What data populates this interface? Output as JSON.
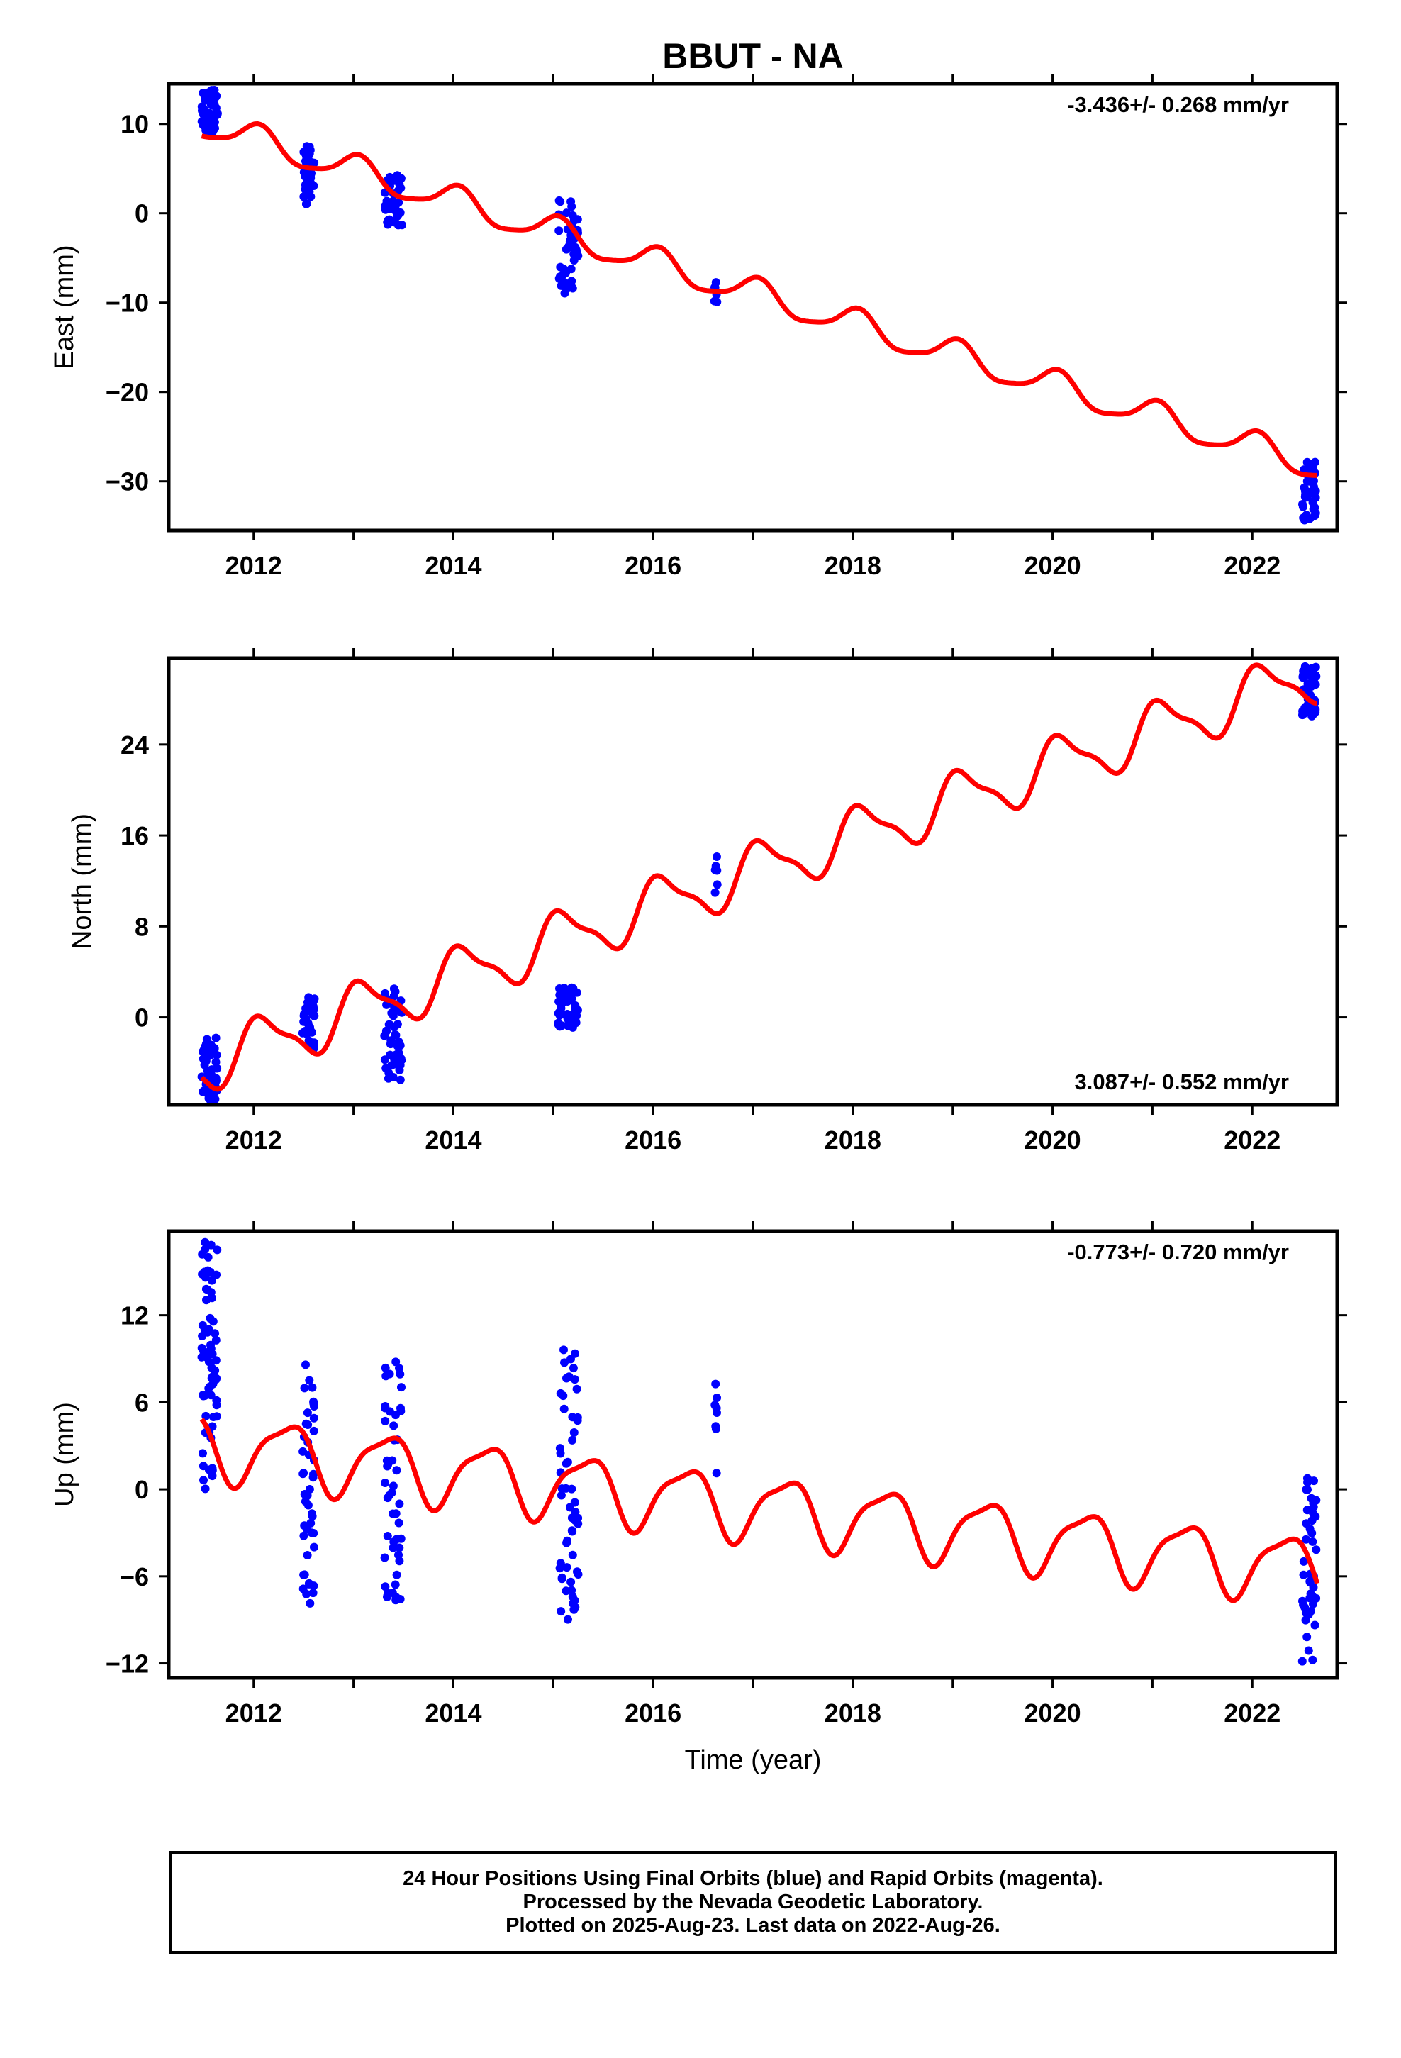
{
  "title": "BBUT - NA",
  "colors": {
    "data": "#0000ff",
    "model": "#ff0000",
    "frame": "#000000"
  },
  "footer": {
    "line1": "24 Hour Positions Using Final Orbits (blue) and Rapid Orbits (magenta).",
    "line2": "Processed by the Nevada Geodetic Laboratory.",
    "line3": "Plotted on 2025-Aug-23. Last data on 2022-Aug-26."
  },
  "chart_data": [
    {
      "type": "scatter",
      "component": "east",
      "title": "",
      "xlabel": "",
      "ylabel": "East (mm)",
      "rate_label": "-3.436+/- 0.268 mm/yr",
      "rate_label_position": "top-right",
      "xlim": [
        2011.15,
        2022.85
      ],
      "ylim": [
        -35.5,
        14.5
      ],
      "xticks": [
        2012,
        2014,
        2016,
        2018,
        2020,
        2022
      ],
      "yticks": [
        10,
        0,
        -10,
        -20,
        -30
      ],
      "ytick_labels": [
        "10",
        "0",
        "−10",
        "−20",
        "−30"
      ],
      "model_params": {
        "t0": 2011.55,
        "offset": 9.8,
        "rate": -3.436,
        "annual_amp": 1.6,
        "annual_phase": 1.3,
        "semi_amp": 0.35,
        "semi_phase": 0.5
      },
      "data_clusters": [
        {
          "center": 2011.56,
          "width": 0.16,
          "y_min": 8.6,
          "y_max": 13.8,
          "n": 60
        },
        {
          "center": 2012.55,
          "width": 0.12,
          "y_min": 1.0,
          "y_max": 7.6,
          "n": 35
        },
        {
          "center": 2013.4,
          "width": 0.18,
          "y_min": -1.5,
          "y_max": 4.3,
          "n": 45
        },
        {
          "center": 2015.15,
          "width": 0.2,
          "y_min": -9.0,
          "y_max": 1.5,
          "n": 45
        },
        {
          "center": 2016.63,
          "width": 0.03,
          "y_min": -10.2,
          "y_max": -7.5,
          "n": 6
        },
        {
          "center": 2022.57,
          "width": 0.14,
          "y_min": -34.4,
          "y_max": -27.6,
          "n": 45
        }
      ]
    },
    {
      "type": "scatter",
      "component": "north",
      "title": "",
      "xlabel": "",
      "ylabel": "North (mm)",
      "rate_label": "3.087+/- 0.552 mm/yr",
      "rate_label_position": "bottom-right",
      "xlim": [
        2011.15,
        2022.85
      ],
      "ylim": [
        -7.7,
        31.6
      ],
      "xticks": [
        2012,
        2014,
        2016,
        2018,
        2020,
        2022
      ],
      "yticks": [
        24,
        16,
        8,
        0
      ],
      "ytick_labels": [
        "24",
        "16",
        "8",
        "0"
      ],
      "model_params": {
        "t0": 2011.55,
        "offset": -4.0,
        "rate": 3.087,
        "annual_amp": 2.3,
        "annual_phase": 1.0,
        "semi_amp": 0.7,
        "semi_phase": 2.0
      },
      "data_clusters": [
        {
          "center": 2011.56,
          "width": 0.16,
          "y_min": -7.3,
          "y_max": -1.8,
          "n": 55
        },
        {
          "center": 2012.55,
          "width": 0.12,
          "y_min": -2.8,
          "y_max": 1.8,
          "n": 35
        },
        {
          "center": 2013.4,
          "width": 0.18,
          "y_min": -5.6,
          "y_max": 2.8,
          "n": 45
        },
        {
          "center": 2015.15,
          "width": 0.2,
          "y_min": -0.9,
          "y_max": 3.0,
          "n": 50
        },
        {
          "center": 2016.63,
          "width": 0.03,
          "y_min": 10.4,
          "y_max": 14.3,
          "n": 6
        },
        {
          "center": 2022.57,
          "width": 0.14,
          "y_min": 26.4,
          "y_max": 31.0,
          "n": 45
        }
      ]
    },
    {
      "type": "scatter",
      "component": "up",
      "title": "",
      "xlabel": "Time (year)",
      "ylabel": "Up (mm)",
      "rate_label": "-0.773+/- 0.720 mm/yr",
      "rate_label_position": "top-right",
      "xlim": [
        2011.15,
        2022.85
      ],
      "ylim": [
        -13.0,
        17.8
      ],
      "xticks": [
        2012,
        2014,
        2016,
        2018,
        2020,
        2022
      ],
      "yticks": [
        12,
        6,
        0,
        -6,
        -12
      ],
      "ytick_labels": [
        "12",
        "6",
        "0",
        "−6",
        "−12"
      ],
      "model_params": {
        "t0": 2011.55,
        "offset": 3.0,
        "rate": -0.773,
        "annual_amp": 2.2,
        "annual_phase": -0.5,
        "semi_amp": 0.6,
        "semi_phase": 1.2
      },
      "data_clusters": [
        {
          "center": 2011.56,
          "width": 0.16,
          "y_min": 0.0,
          "y_max": 17.5,
          "n": 70
        },
        {
          "center": 2012.55,
          "width": 0.12,
          "y_min": -8.0,
          "y_max": 9.3,
          "n": 45
        },
        {
          "center": 2013.4,
          "width": 0.18,
          "y_min": -7.7,
          "y_max": 9.3,
          "n": 50
        },
        {
          "center": 2015.15,
          "width": 0.2,
          "y_min": -9.0,
          "y_max": 9.7,
          "n": 55
        },
        {
          "center": 2016.63,
          "width": 0.03,
          "y_min": 1.0,
          "y_max": 7.9,
          "n": 8
        },
        {
          "center": 2022.57,
          "width": 0.14,
          "y_min": -12.1,
          "y_max": 1.9,
          "n": 45
        }
      ]
    }
  ]
}
